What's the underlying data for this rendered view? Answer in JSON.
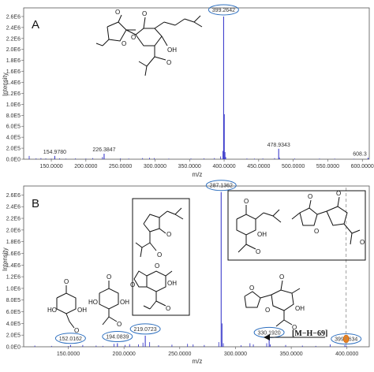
{
  "chart_data": [
    {
      "type": "bar",
      "panel": "A",
      "xlabel": "m/z",
      "ylabel": "Intensity",
      "xlim": [
        110,
        610
      ],
      "ylim": [
        0,
        2700000
      ],
      "xticks": [
        150,
        200,
        250,
        300,
        350,
        400,
        450,
        500,
        550,
        600
      ],
      "xtick_labels": [
        "150.0000",
        "200.0000",
        "250.0000",
        "300.0000",
        "350.0000",
        "400.0000",
        "450.0000",
        "500.0000",
        "550.0000",
        "600.0000"
      ],
      "yticks": [
        0,
        200000,
        400000,
        600000,
        800000,
        1000000,
        1200000,
        1400000,
        1600000,
        1800000,
        2000000,
        2200000,
        2400000,
        2600000
      ],
      "ytick_labels": [
        "0.0E0",
        "2.0E5",
        "4.0E5",
        "6.0E5",
        "8.0E5",
        "1.0E6",
        "1.2E6",
        "1.4E6",
        "1.6E6",
        "1.8E6",
        "2.0E6",
        "2.2E6",
        "2.4E6",
        "2.6E6"
      ],
      "peaks": [
        {
          "x": 154.978,
          "y": 60000,
          "label": "154.9780",
          "circled": false
        },
        {
          "x": 226.3847,
          "y": 100000,
          "label": "226.3847",
          "circled": false
        },
        {
          "x": 399.2642,
          "y": 2600000,
          "label": "399.2642",
          "circled": true
        },
        {
          "x": 478.9343,
          "y": 190000,
          "label": "478.9343",
          "circled": false
        },
        {
          "x": 608.3,
          "y": 25000,
          "label": "608.3",
          "circled": false
        }
      ],
      "minor_peaks": [
        {
          "x": 118,
          "y": 60000
        },
        {
          "x": 128,
          "y": 15000
        },
        {
          "x": 135,
          "y": 20000
        },
        {
          "x": 142,
          "y": 15000
        },
        {
          "x": 150,
          "y": 10000
        },
        {
          "x": 162,
          "y": 15000
        },
        {
          "x": 171,
          "y": 10000
        },
        {
          "x": 185,
          "y": 15000
        },
        {
          "x": 200,
          "y": 12000
        },
        {
          "x": 210,
          "y": 20000
        },
        {
          "x": 224,
          "y": 40000
        },
        {
          "x": 250,
          "y": 15000
        },
        {
          "x": 262,
          "y": 12000
        },
        {
          "x": 282,
          "y": 20000
        },
        {
          "x": 292,
          "y": 25000
        },
        {
          "x": 299,
          "y": 20000
        },
        {
          "x": 320,
          "y": 10000
        },
        {
          "x": 352,
          "y": 12000
        },
        {
          "x": 371,
          "y": 15000
        },
        {
          "x": 386,
          "y": 20000
        },
        {
          "x": 395,
          "y": 50000
        },
        {
          "x": 398,
          "y": 150000
        },
        {
          "x": 400.3,
          "y": 820000
        },
        {
          "x": 401.3,
          "y": 130000
        },
        {
          "x": 402.3,
          "y": 40000
        },
        {
          "x": 433,
          "y": 12000
        },
        {
          "x": 444,
          "y": 10000
        },
        {
          "x": 456,
          "y": 12000
        },
        {
          "x": 473,
          "y": 20000
        },
        {
          "x": 480,
          "y": 30000
        },
        {
          "x": 502,
          "y": 12000
        },
        {
          "x": 538,
          "y": 10000
        },
        {
          "x": 560,
          "y": 10000
        },
        {
          "x": 588,
          "y": 8000
        }
      ]
    },
    {
      "type": "bar",
      "panel": "B",
      "xlabel": "m/z",
      "ylabel": "Intensity",
      "xlim": [
        110,
        420
      ],
      "ylim": [
        0,
        2700000
      ],
      "xticks": [
        150,
        200,
        250,
        300,
        350,
        400
      ],
      "xtick_labels": [
        "150.0000",
        "200.0000",
        "250.0000",
        "300.0000",
        "350.0000",
        "400.0000"
      ],
      "yticks": [
        0,
        200000,
        400000,
        600000,
        800000,
        1000000,
        1200000,
        1400000,
        1600000,
        1800000,
        2000000,
        2200000,
        2400000,
        2600000
      ],
      "ytick_labels": [
        "0.0E0",
        "2.0E5",
        "4.0E5",
        "6.0E5",
        "8.0E5",
        "1.0E6",
        "1.2E6",
        "1.4E6",
        "1.6E6",
        "1.8E6",
        "2.0E6",
        "2.2E6",
        "2.4E6",
        "2.6E6"
      ],
      "peaks": [
        {
          "x": 152.0162,
          "y": 30000,
          "label": "152.0162",
          "circled": true
        },
        {
          "x": 194.0839,
          "y": 60000,
          "label": "194.0839",
          "circled": true
        },
        {
          "x": 219.0723,
          "y": 190000,
          "label": "219.0723",
          "circled": true
        },
        {
          "x": 287.1362,
          "y": 2650000,
          "label": "287.1362",
          "circled": true
        },
        {
          "x": 330.192,
          "y": 130000,
          "label": "330.1920",
          "circled": true
        },
        {
          "x": 399.2634,
          "y": 20000,
          "label": "399.2634",
          "circled": true
        }
      ],
      "minor_peaks": [
        {
          "x": 120,
          "y": 20000
        },
        {
          "x": 135,
          "y": 15000
        },
        {
          "x": 150,
          "y": 12000
        },
        {
          "x": 163,
          "y": 30000
        },
        {
          "x": 175,
          "y": 20000
        },
        {
          "x": 181,
          "y": 15000
        },
        {
          "x": 191,
          "y": 50000
        },
        {
          "x": 201,
          "y": 30000
        },
        {
          "x": 205,
          "y": 45000
        },
        {
          "x": 213,
          "y": 40000
        },
        {
          "x": 217,
          "y": 70000
        },
        {
          "x": 223,
          "y": 80000
        },
        {
          "x": 231,
          "y": 25000
        },
        {
          "x": 243,
          "y": 35000
        },
        {
          "x": 257,
          "y": 50000
        },
        {
          "x": 262,
          "y": 40000
        },
        {
          "x": 272,
          "y": 30000
        },
        {
          "x": 285,
          "y": 80000
        },
        {
          "x": 288.1,
          "y": 400000
        },
        {
          "x": 289.1,
          "y": 60000
        },
        {
          "x": 305,
          "y": 25000
        },
        {
          "x": 313,
          "y": 60000
        },
        {
          "x": 316,
          "y": 40000
        },
        {
          "x": 328,
          "y": 60000
        },
        {
          "x": 331.2,
          "y": 40000
        },
        {
          "x": 345,
          "y": 30000
        },
        {
          "x": 360,
          "y": 20000
        },
        {
          "x": 372,
          "y": 15000
        },
        {
          "x": 385,
          "y": 40000
        },
        {
          "x": 398,
          "y": 30000
        }
      ],
      "annotation": "[M−H−69]"
    }
  ],
  "colors": {
    "peak": "#2b2bc7",
    "circle": "#2d6fbf",
    "highlight_peak": "#e8801f",
    "axis": "#555555"
  }
}
